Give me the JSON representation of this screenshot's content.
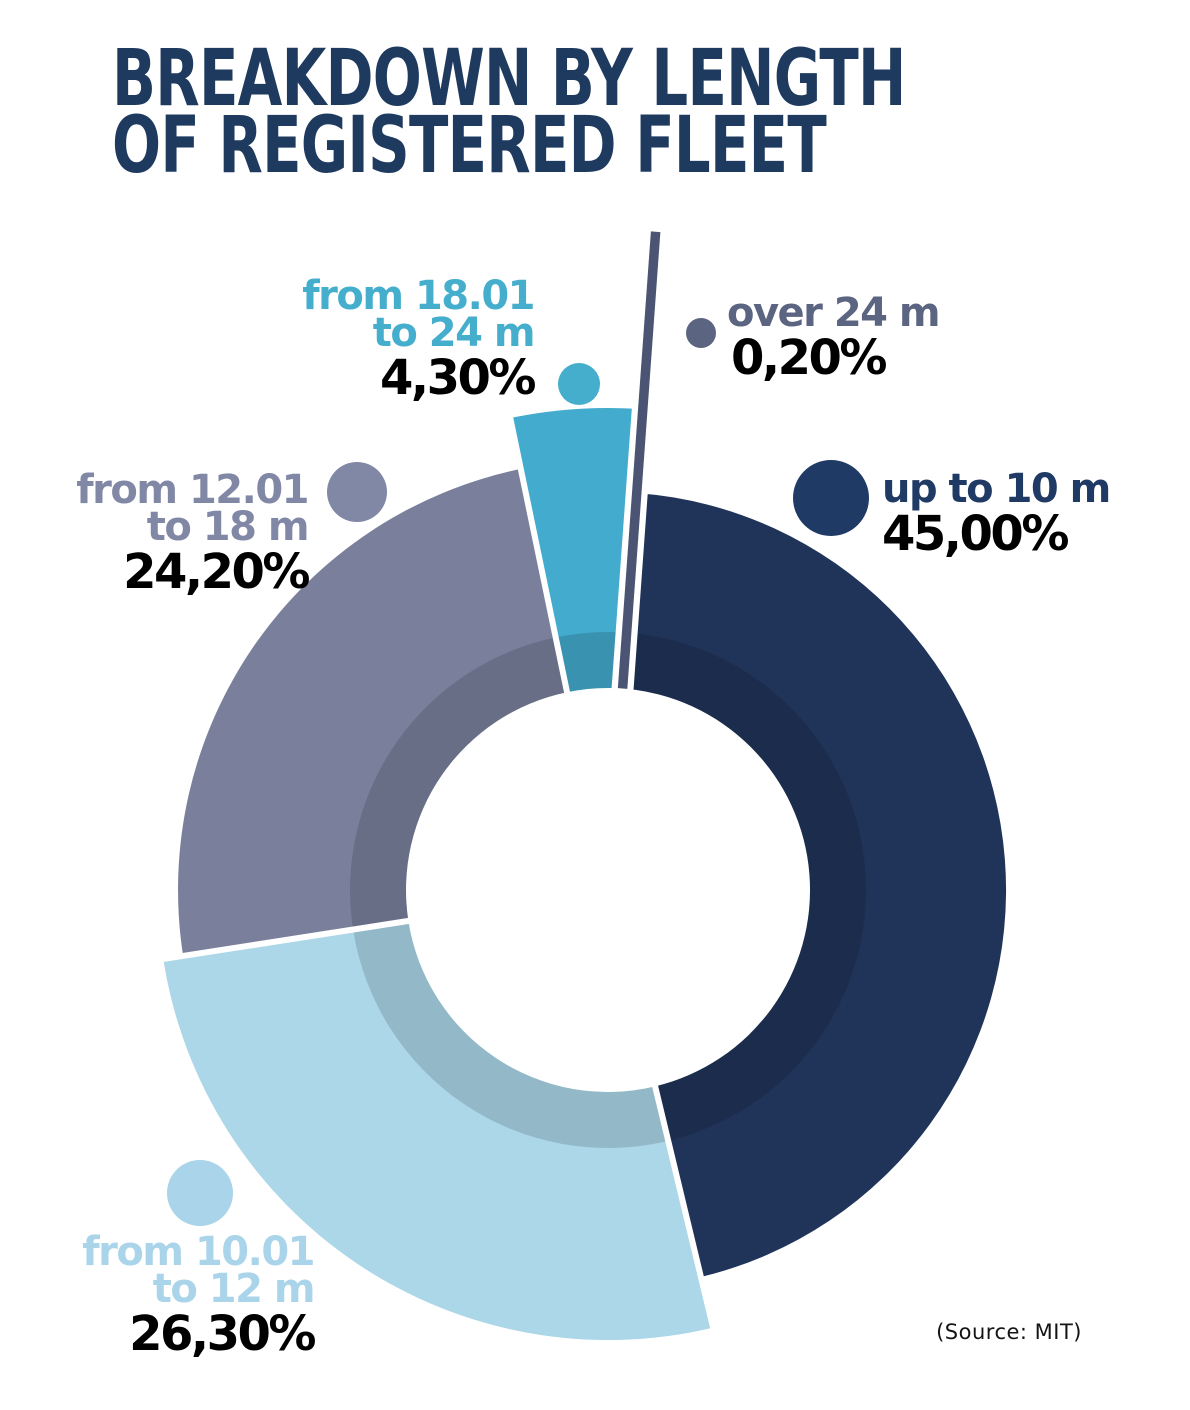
{
  "title": {
    "line1": "BREAKDOWN BY LENGTH",
    "line2": "OF REGISTERED FLEET"
  },
  "source_note": "(Source: MIT)",
  "chart_data": {
    "type": "pie",
    "subtype": "donut",
    "title": "BREAKDOWN BY LENGTH OF REGISTERED FLEET",
    "unit": "percent",
    "categories": [
      "up to 10 m",
      "from 10.01 to 12 m",
      "from 12.01 to 18 m",
      "from 18.01 to 24 m",
      "over 24 m"
    ],
    "values": [
      45.0,
      26.3,
      24.2,
      4.3,
      0.2
    ],
    "value_labels": [
      "45,00%",
      "26,30%",
      "24,20%",
      "4,30%",
      "0,20%"
    ],
    "colors": [
      "#20345a",
      "#acd7e9",
      "#7a809c",
      "#43abcd",
      "#4b5472"
    ],
    "label_colors": [
      "#1f3a64",
      "#a9d4e9",
      "#8188a5",
      "#45aecd",
      "#5b6480"
    ],
    "start_angle_deg": 4.5,
    "clockwise": true,
    "legend_position": "around",
    "source": "(Source: MIT)"
  },
  "callouts": {
    "up_to_10m": {
      "line1": "up to 10 m",
      "pct": "45,00%"
    },
    "from_10_01_to_12m": {
      "line1": "from 10.01",
      "line2": "to 12 m",
      "pct": "26,30%"
    },
    "from_12_01_to_18m": {
      "line1": "from 12.01",
      "line2": "to 18 m",
      "pct": "24,20%"
    },
    "from_18_01_to_24m": {
      "line1": "from 18.01",
      "line2": "to 24 m",
      "pct": "4,30%"
    },
    "over_24m": {
      "line1": "over 24 m",
      "pct": "0,20%"
    }
  }
}
